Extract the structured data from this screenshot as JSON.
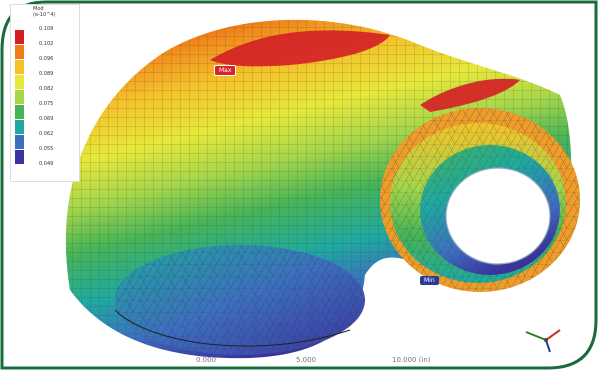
{
  "legend": {
    "header": [
      "Mod",
      "(e-10^4)"
    ],
    "colors": [
      "#d41e26",
      "#f07d18",
      "#f5c12a",
      "#e6e83a",
      "#a6d64a",
      "#46b457",
      "#1fa9a0",
      "#3c6fc0",
      "#3b34a0"
    ],
    "values": [
      "0.109",
      "0.102",
      "0.096",
      "0.089",
      "0.082",
      "0.075",
      "0.069",
      "0.062",
      "0.055",
      "0.049"
    ]
  },
  "annotations": {
    "max": "Max",
    "min": "Min"
  },
  "scale": [
    "0.000",
    "5.000",
    "10.000 (in)"
  ],
  "theme": {
    "border": "#1a6b3c",
    "mesh": "#333333"
  }
}
